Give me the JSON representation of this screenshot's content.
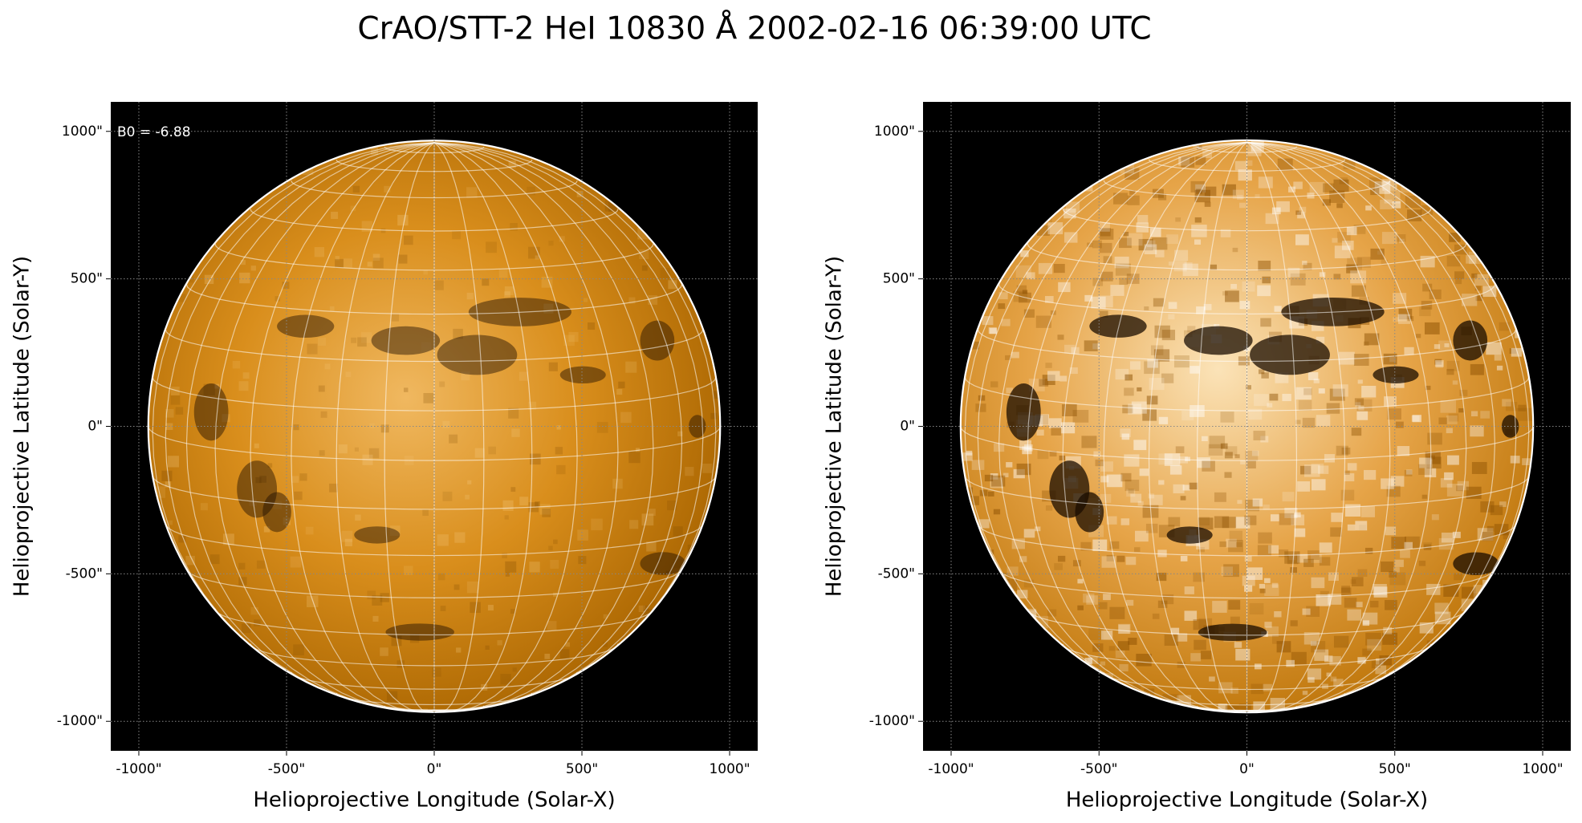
{
  "title": "CrAO/STT-2 HeI 10830 Å 2002-02-16 06:39:00 UTC",
  "chart_data": [
    {
      "type": "image",
      "xlabel": "Helioprojective Longitude (Solar-X)",
      "ylabel": "Helioprojective Latitude (Solar-Y)",
      "annotation": "B0 = -6.88",
      "xlim": [
        -1095,
        1095
      ],
      "ylim": [
        -1100,
        1100
      ],
      "xticks": [
        {
          "value": -1000,
          "label": "-1000\""
        },
        {
          "value": -500,
          "label": "-500\""
        },
        {
          "value": 0,
          "label": "0\""
        },
        {
          "value": 500,
          "label": "500\""
        },
        {
          "value": 1000,
          "label": "1000\""
        }
      ],
      "yticks": [
        {
          "value": -1000,
          "label": "-1000\""
        },
        {
          "value": -500,
          "label": "-500\""
        },
        {
          "value": 0,
          "label": "0\""
        },
        {
          "value": 500,
          "label": "500\""
        },
        {
          "value": 1000,
          "label": "1000\""
        }
      ],
      "grid": true
    },
    {
      "type": "image",
      "xlabel": "Helioprojective Longitude (Solar-X)",
      "ylabel": "Helioprojective Latitude (Solar-Y)",
      "xlim": [
        -1095,
        1095
      ],
      "ylim": [
        -1100,
        1100
      ],
      "xticks": [
        {
          "value": -1000,
          "label": "-1000\""
        },
        {
          "value": -500,
          "label": "-500\""
        },
        {
          "value": 0,
          "label": "0\""
        },
        {
          "value": 500,
          "label": "500\""
        },
        {
          "value": 1000,
          "label": "1000\""
        }
      ],
      "yticks": [
        {
          "value": -1000,
          "label": "-1000\""
        },
        {
          "value": -500,
          "label": "-500\""
        },
        {
          "value": 0,
          "label": "0\""
        },
        {
          "value": 500,
          "label": "500\""
        },
        {
          "value": 1000,
          "label": "1000\""
        }
      ],
      "grid": true
    }
  ]
}
